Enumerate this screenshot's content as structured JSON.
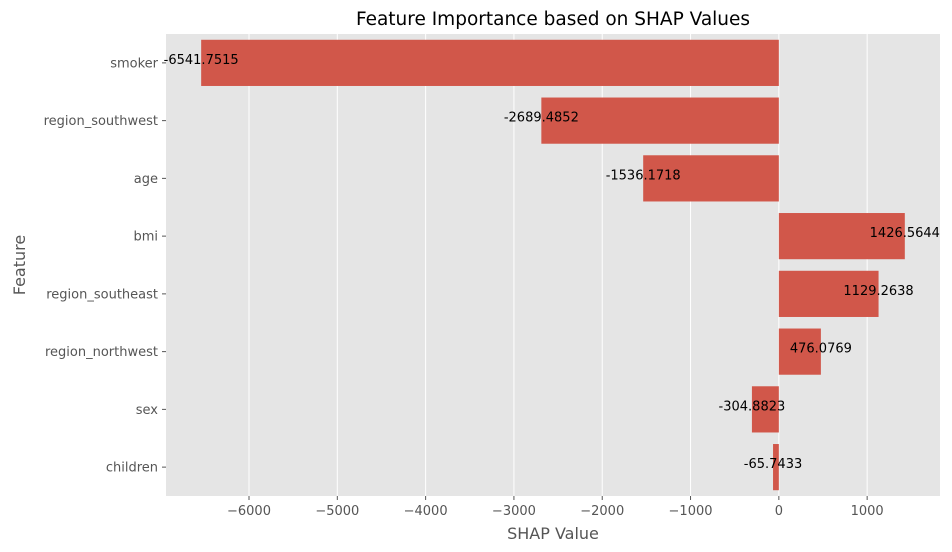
{
  "chart_data": {
    "type": "bar",
    "orientation": "horizontal",
    "title": "Feature Importance based on SHAP Values",
    "xlabel": "SHAP Value",
    "ylabel": "Feature",
    "categories": [
      "smoker",
      "region_southwest",
      "age",
      "bmi",
      "region_southeast",
      "region_northwest",
      "sex",
      "children"
    ],
    "values": [
      -6541.7515,
      -2689.4852,
      -1536.1718,
      1426.5644,
      1129.2638,
      476.0769,
      -304.8823,
      -65.7433
    ],
    "value_labels": [
      "-6541.7515",
      "-2689.4852",
      "-1536.1718",
      "1426.5644",
      "1129.2638",
      "476.0769",
      "-304.8823",
      "-65.7433"
    ],
    "xlim": [
      -6940,
      1825
    ],
    "xticks": [
      -6000,
      -5000,
      -4000,
      -3000,
      -2000,
      -1000,
      0,
      1000
    ],
    "xtick_labels": [
      "−6000",
      "−5000",
      "−4000",
      "−3000",
      "−2000",
      "−1000",
      "0",
      "1000"
    ],
    "grid": true,
    "bar_color": "#d1574a",
    "background_color": "#e5e5e5",
    "grid_color": "#ffffff"
  }
}
